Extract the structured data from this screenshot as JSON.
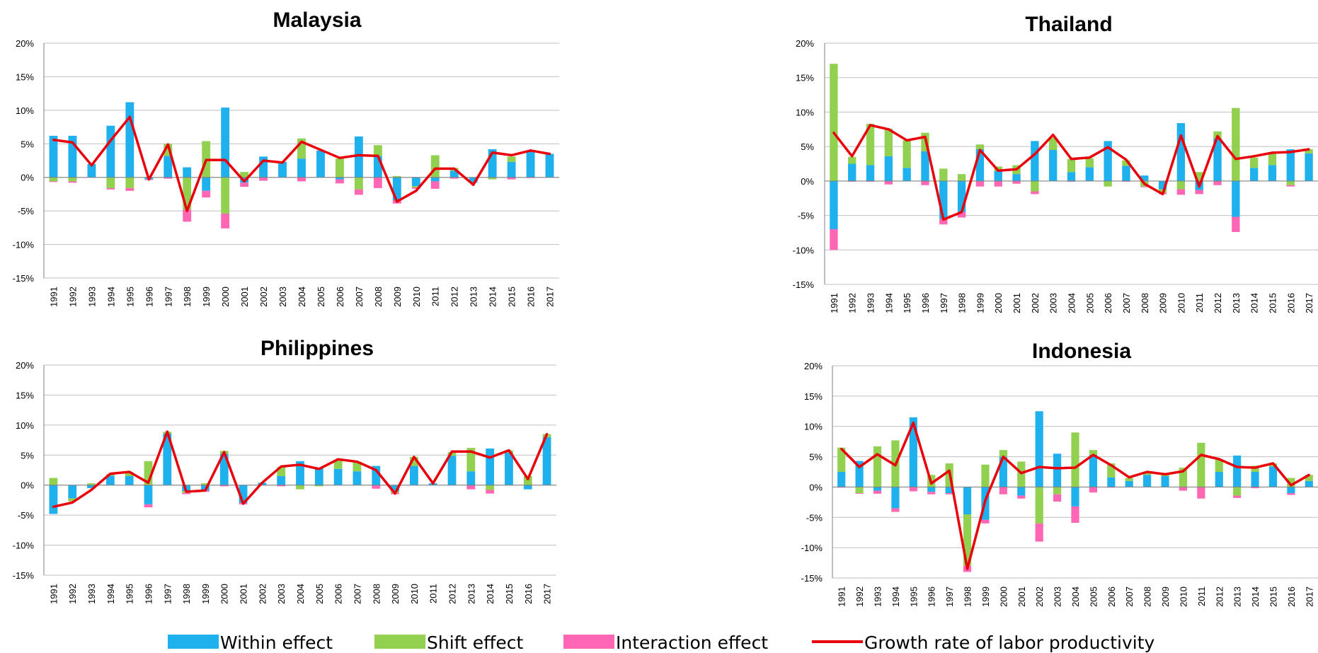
{
  "colors": {
    "within": "#1FB0EE",
    "shift": "#92D050",
    "interaction": "#FF66B3",
    "growth": "#E8000B",
    "grid": "#BFBFBF",
    "axis": "#7F7F7F"
  },
  "legend": {
    "within_label": "Within effect",
    "shift_label": "Shift effect",
    "interaction_label": "Interaction effect",
    "growth_label": "Growth rate of labor productivity"
  },
  "chart_data": [
    {
      "type": "bar",
      "title": "Malaysia",
      "categories": [
        "1991",
        "1992",
        "1993",
        "1994",
        "1995",
        "1996",
        "1997",
        "1998",
        "1999",
        "2000",
        "2001",
        "2002",
        "2003",
        "2004",
        "2005",
        "2006",
        "2007",
        "2008",
        "2009",
        "2010",
        "2011",
        "2012",
        "2013",
        "2014",
        "2015",
        "2016",
        "2017"
      ],
      "yticks": [
        "20%",
        "15%",
        "10%",
        "5%",
        "0%",
        "-5%",
        "-10%",
        "-15%"
      ],
      "ylim": [
        -15,
        20
      ],
      "series": [
        {
          "key": "within",
          "values": [
            6.2,
            6.2,
            2.0,
            7.7,
            11.2,
            -0.3,
            3.2,
            1.5,
            -2.0,
            10.4,
            -0.8,
            3.1,
            2.3,
            2.8,
            4.0,
            -0.3,
            6.1,
            3.2,
            -3.4,
            -1.3,
            -0.6,
            1.0,
            -0.8,
            4.2,
            2.3,
            4.0,
            3.5
          ]
        },
        {
          "key": "shift",
          "values": [
            -0.6,
            -0.6,
            0.0,
            -1.6,
            -1.6,
            0.0,
            1.8,
            -4.8,
            5.4,
            -5.4,
            0.8,
            0.0,
            0.0,
            3.0,
            0.0,
            2.8,
            -1.8,
            1.6,
            0.2,
            -0.2,
            3.3,
            0.4,
            0.0,
            -0.3,
            0.8,
            0.0,
            0.0
          ]
        },
        {
          "key": "interaction",
          "values": [
            -0.1,
            -0.2,
            0.0,
            -0.2,
            -0.4,
            -0.1,
            -0.2,
            -1.8,
            -1.0,
            -2.2,
            -0.6,
            -0.5,
            0.0,
            -0.6,
            0.0,
            -0.6,
            -0.8,
            -1.6,
            -0.5,
            -0.2,
            -1.1,
            -0.2,
            0.0,
            0.0,
            -0.3,
            -0.1,
            0.0
          ]
        },
        {
          "key": "growth",
          "values": [
            5.6,
            5.2,
            1.8,
            5.5,
            9.0,
            -0.3,
            4.9,
            -5.0,
            2.6,
            2.6,
            -0.6,
            2.5,
            2.2,
            5.3,
            4.1,
            2.9,
            3.3,
            3.2,
            -3.6,
            -2.0,
            1.3,
            1.3,
            -1.1,
            3.7,
            3.3,
            4.0,
            3.5
          ]
        }
      ]
    },
    {
      "type": "bar",
      "title": "Thailand",
      "categories": [
        "1991",
        "1992",
        "1993",
        "1994",
        "1995",
        "1996",
        "1997",
        "1998",
        "1999",
        "2000",
        "2001",
        "2002",
        "2003",
        "2004",
        "2005",
        "2006",
        "2007",
        "2008",
        "2009",
        "2010",
        "2011",
        "2012",
        "2013",
        "2014",
        "2015",
        "2016",
        "2017"
      ],
      "yticks": [
        "20%",
        "15%",
        "10%",
        "5%",
        "0%",
        "-5%",
        "-10%",
        "-15%"
      ],
      "ylim": [
        -15,
        20
      ],
      "series": [
        {
          "key": "within",
          "values": [
            -7.0,
            2.5,
            2.3,
            3.6,
            1.9,
            4.3,
            -5.5,
            -4.5,
            4.6,
            1.5,
            1.0,
            5.8,
            4.5,
            1.3,
            2.0,
            5.8,
            2.2,
            0.8,
            -1.2,
            8.4,
            -1.3,
            6.2,
            -5.2,
            1.9,
            2.3,
            4.6,
            4.0
          ]
        },
        {
          "key": "shift",
          "values": [
            17.0,
            1.0,
            6.0,
            4.0,
            4.0,
            2.7,
            1.8,
            1.0,
            0.7,
            0.6,
            1.3,
            -1.5,
            1.8,
            1.9,
            1.3,
            -0.8,
            0.8,
            -0.8,
            -0.5,
            -1.2,
            1.3,
            1.0,
            10.6,
            1.5,
            1.8,
            -0.6,
            0.6
          ]
        },
        {
          "key": "interaction",
          "values": [
            -3.0,
            -0.1,
            -0.1,
            -0.5,
            0.0,
            -0.6,
            -0.8,
            -0.8,
            -0.8,
            -0.8,
            -0.4,
            -0.4,
            0.0,
            -0.1,
            0.0,
            0.0,
            -0.1,
            -0.1,
            -0.2,
            -0.8,
            -0.6,
            -0.6,
            -2.2,
            0.0,
            0.0,
            -0.2,
            0.0
          ]
        },
        {
          "key": "growth",
          "values": [
            7.0,
            3.6,
            8.1,
            7.5,
            5.9,
            6.4,
            -5.6,
            -4.5,
            4.5,
            1.5,
            1.7,
            3.9,
            6.7,
            3.2,
            3.4,
            4.9,
            3.1,
            -0.4,
            -1.9,
            6.6,
            -0.8,
            6.5,
            3.2,
            3.6,
            4.1,
            4.2,
            4.6
          ]
        }
      ]
    },
    {
      "type": "bar",
      "title": "Philippines",
      "categories": [
        "1991",
        "1992",
        "1993",
        "1994",
        "1995",
        "1996",
        "1997",
        "1998",
        "1999",
        "2000",
        "2001",
        "2002",
        "2003",
        "2004",
        "2005",
        "2006",
        "2007",
        "2008",
        "2009",
        "2010",
        "2011",
        "2012",
        "2013",
        "2014",
        "2015",
        "2016",
        "2017"
      ],
      "yticks": [
        "20%",
        "15%",
        "10%",
        "5%",
        "0%",
        "-5%",
        "-10%",
        "-15%"
      ],
      "ylim": [
        -15,
        20
      ],
      "series": [
        {
          "key": "within",
          "values": [
            -4.8,
            -2.2,
            -0.5,
            1.6,
            1.5,
            -3.2,
            8.6,
            -1.0,
            -0.9,
            5.2,
            -3.0,
            0.4,
            1.5,
            4.0,
            2.8,
            2.7,
            2.3,
            3.2,
            -1.0,
            3.2,
            0.3,
            4.9,
            2.3,
            6.1,
            5.4,
            -0.7,
            8.0
          ]
        },
        {
          "key": "shift",
          "values": [
            1.2,
            -0.5,
            0.3,
            0.2,
            0.7,
            4.0,
            0.3,
            -0.3,
            0.3,
            0.5,
            0.0,
            0.0,
            1.5,
            -0.7,
            -0.2,
            1.5,
            1.6,
            0.0,
            -0.3,
            1.5,
            0.0,
            0.6,
            3.9,
            -0.8,
            0.4,
            1.5,
            0.5
          ]
        },
        {
          "key": "interaction",
          "values": [
            0.0,
            0.0,
            0.0,
            0.0,
            0.0,
            -0.5,
            0.0,
            -0.2,
            -0.2,
            -0.2,
            -0.2,
            0.0,
            -0.2,
            0.0,
            0.0,
            0.0,
            0.0,
            -0.6,
            -0.2,
            0.0,
            0.0,
            0.0,
            -0.7,
            -0.6,
            0.0,
            0.0,
            0.0
          ]
        },
        {
          "key": "growth",
          "values": [
            -3.6,
            -2.9,
            -0.8,
            1.9,
            2.2,
            0.4,
            8.9,
            -1.1,
            -0.9,
            5.5,
            -3.1,
            0.4,
            3.1,
            3.4,
            2.7,
            4.3,
            3.9,
            2.5,
            -1.4,
            4.7,
            0.3,
            5.6,
            5.6,
            4.6,
            5.8,
            1.0,
            8.5
          ]
        }
      ]
    },
    {
      "type": "bar",
      "title": "Indonesia",
      "categories": [
        "1991",
        "1992",
        "1993",
        "1994",
        "1995",
        "1996",
        "1997",
        "1998",
        "1999",
        "2000",
        "2001",
        "2002",
        "2003",
        "2004",
        "2005",
        "2006",
        "2007",
        "2008",
        "2009",
        "2010",
        "2011",
        "2012",
        "2013",
        "2014",
        "2015",
        "2016",
        "2017"
      ],
      "yticks": [
        "20%",
        "15%",
        "10%",
        "5%",
        "0%",
        "-5%",
        "-10%",
        "-15%"
      ],
      "ylim": [
        -15,
        20
      ],
      "series": [
        {
          "key": "within",
          "values": [
            2.5,
            4.3,
            -0.6,
            -3.5,
            11.5,
            -0.8,
            -1.0,
            -4.5,
            -5.4,
            5.0,
            -1.4,
            12.5,
            5.5,
            -3.2,
            5.3,
            1.6,
            1.0,
            2.0,
            1.8,
            0.0,
            0.0,
            2.5,
            5.2,
            2.5,
            3.4,
            -1.0,
            1.0
          ]
        },
        {
          "key": "shift",
          "values": [
            4.0,
            -1.0,
            6.7,
            7.7,
            0.0,
            2.0,
            3.9,
            -8.5,
            3.7,
            1.1,
            4.2,
            -6.0,
            -1.2,
            9.0,
            0.8,
            2.3,
            0.5,
            0.5,
            0.5,
            3.2,
            7.3,
            2.0,
            -1.4,
            1.0,
            0.5,
            1.5,
            1.0
          ]
        },
        {
          "key": "interaction",
          "values": [
            -0.1,
            -0.1,
            -0.5,
            -0.6,
            -0.7,
            -0.4,
            -0.2,
            -1.0,
            -0.6,
            -1.2,
            -0.5,
            -3.0,
            -1.2,
            -2.7,
            -0.9,
            -0.1,
            0.0,
            0.0,
            0.0,
            -0.6,
            -1.9,
            0.0,
            -0.4,
            -0.2,
            0.0,
            -0.3,
            0.0
          ]
        },
        {
          "key": "growth",
          "values": [
            6.3,
            3.3,
            5.4,
            3.6,
            10.6,
            0.6,
            2.7,
            -13.5,
            -2.2,
            5.0,
            2.3,
            3.3,
            3.1,
            3.2,
            5.3,
            3.6,
            1.6,
            2.5,
            2.1,
            2.6,
            5.3,
            4.6,
            3.3,
            3.2,
            3.9,
            0.3,
            2.0
          ]
        }
      ]
    }
  ]
}
